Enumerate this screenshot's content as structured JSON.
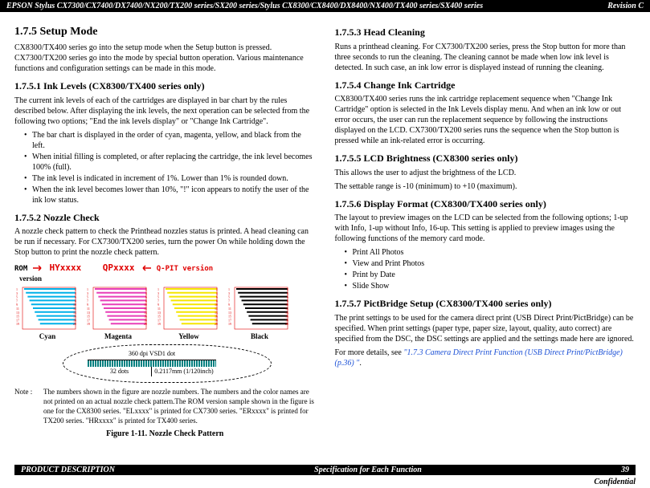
{
  "topbar": {
    "title": "EPSON Stylus CX7300/CX7400/DX7400/NX200/TX200 series/SX200 series/Stylus CX8300/CX8400/DX8400/NX400/TX400 series/SX400 series",
    "revision": "Revision C"
  },
  "left": {
    "h_setup": "1.7.5  Setup Mode",
    "p_setup": "CX8300/TX400 series go into the setup mode when the Setup button is pressed. CX7300/TX200 series go into the mode by special button operation. Various maintenance functions and configuration settings can be made in this mode.",
    "h_ink": "1.7.5.1  Ink Levels (CX8300/TX400 series only)",
    "p_ink": "The current ink levels of each of the cartridges are displayed in bar chart by the rules described below. After displaying the ink levels, the next operation can be selected from the following two options; \"End the ink levels display\" or \"Change Ink Cartridge\".",
    "ink_items": [
      "The bar chart is displayed in the order of cyan, magenta, yellow, and black from the left.",
      "When initial filling is completed, or after replacing the cartridge, the ink level becomes 100% (full).",
      "The ink level is indicated in increment of 1%. Lower than 1% is rounded down.",
      "When the ink level becomes lower than 10%, \"!\" icon appears to notify the user of the ink low status."
    ],
    "h_nozzle": "1.7.5.2  Nozzle Check",
    "p_nozzle": "A nozzle check pattern to check the Printhead nozzles status is printed. A head cleaning can be run if necessary. For CX7300/TX200 series, turn the power On while holding down the Stop button to print the nozzle check pattern.",
    "figure": {
      "rom_label": "ROM",
      "rom_sub": "version",
      "hy": "HYxxxx",
      "qp": "QPxxxx",
      "qpit_label": "Q-PIT version",
      "colors": [
        "Cyan",
        "Magenta",
        "Yellow",
        "Black"
      ],
      "bar_hex": [
        "#00b0e8",
        "#e83fb8",
        "#f5e600",
        "#000000"
      ],
      "nums_left": [
        "C1",
        "C3",
        "C5",
        "C7",
        "C9",
        "C11",
        "C13",
        "C15",
        "C17",
        "C19"
      ],
      "nums_right": [
        "2",
        "4",
        "6",
        "8",
        "10",
        "12",
        "14",
        "16",
        "18",
        "20"
      ],
      "meas1": "360 dpi VSD1 dot",
      "meas2a": "32 dots",
      "meas2b": "0.2117mm (1/120inch)"
    },
    "note_label": "Note :",
    "note_text": "The numbers shown in the figure are nozzle numbers. The numbers and the color names are not printed on an actual nozzle check pattern.The ROM version sample shown in the figure is one for the CX8300 series. \"ELxxxx\" is printed for CX7300 series. \"ERxxxx\" is printed for TX200 series. \"HRxxxx\" is printed for TX400 series.",
    "fig_caption": "Figure 1-11.  Nozzle Check Pattern"
  },
  "right": {
    "h_head": "1.7.5.3  Head Cleaning",
    "p_head": "Runs a printhead cleaning. For CX7300/TX200 series, press the Stop button for more than three seconds to run the cleaning. The cleaning cannot be made when low ink level is detected. In such case, an ink low error is displayed instead of running the cleaning.",
    "h_change": "1.7.5.4  Change Ink Cartridge",
    "p_change": "CX8300/TX400 series runs the ink cartridge replacement sequence when \"Change Ink Cartridge\" option is selected in the Ink Levels display menu. And when an ink low or out error occurs, the user can run the replacement sequence by following the instructions displayed on the LCD. CX7300/TX200 series runs the sequence when the Stop button is pressed while an ink-related error is occurring.",
    "h_lcd": "1.7.5.5  LCD Brightness (CX8300 series only)",
    "p_lcd1": "This allows the user to adjust the brightness of the LCD.",
    "p_lcd2": "The settable range is -10 (minimum) to +10 (maximum).",
    "h_disp": "1.7.5.6  Display Format (CX8300/TX400 series only)",
    "p_disp": "The layout to preview images on the LCD can be selected from the following options; 1-up with Info, 1-up without Info, 16-up. This setting is applied to preview images using the following functions of the memory card mode.",
    "disp_items": [
      "Print All Photos",
      "View and Print Photos",
      "Print by Date",
      "Slide Show"
    ],
    "h_pict": "1.7.5.7  PictBridge Setup (CX8300/TX400 series only)",
    "p_pict1": "The print settings to be used for the camera direct print (USB Direct Print/PictBridge) can be specified. When print settings (paper type, paper size, layout, quality, auto correct) are specified from the DSC, the DSC settings are applied and the settings made here are ignored.",
    "p_pict2a": "For more details, see ",
    "p_pict2b": "\"1.7.3 Camera Direct Print Function (USB Direct Print/PictBridge) (p.36) \"",
    "p_pict2c": "."
  },
  "bottombar": {
    "left": "PRODUCT DESCRIPTION",
    "center": "Specification for Each Function",
    "page": "39"
  },
  "confidential": "Confidential"
}
